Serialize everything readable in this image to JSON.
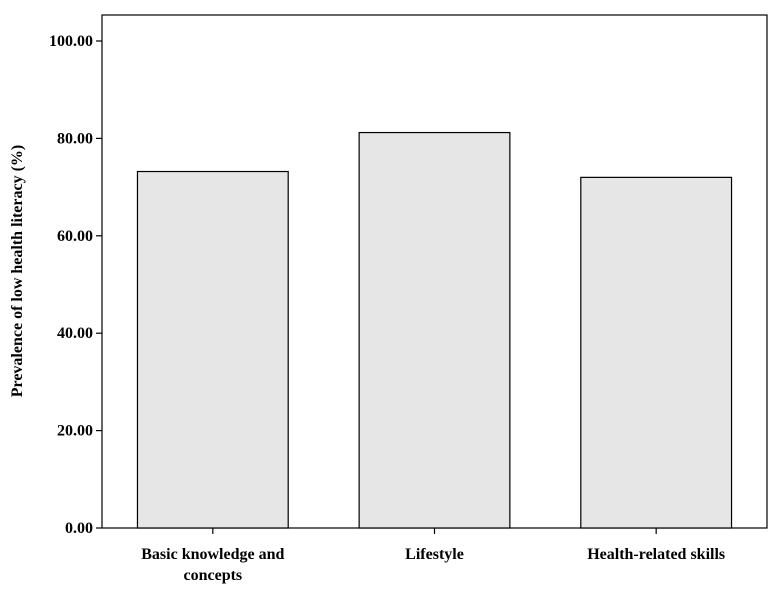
{
  "chart_data": {
    "type": "bar",
    "title": "",
    "xlabel": "",
    "ylabel": "Prevalence of low health literacy (%)",
    "categories": [
      [
        "Basic knowledge and",
        "concepts"
      ],
      [
        "Lifestyle"
      ],
      [
        "Health-related skills"
      ]
    ],
    "values": [
      73.2,
      81.2,
      72.0
    ],
    "ylim": [
      0,
      100
    ],
    "yticks": [
      "0.00",
      "20.00",
      "40.00",
      "60.00",
      "80.00",
      "100.00"
    ],
    "ytick_values": [
      0,
      20,
      40,
      60,
      80,
      100
    ],
    "grid": false,
    "bar_fill": "#e6e6e6",
    "bar_stroke": "#000000"
  }
}
